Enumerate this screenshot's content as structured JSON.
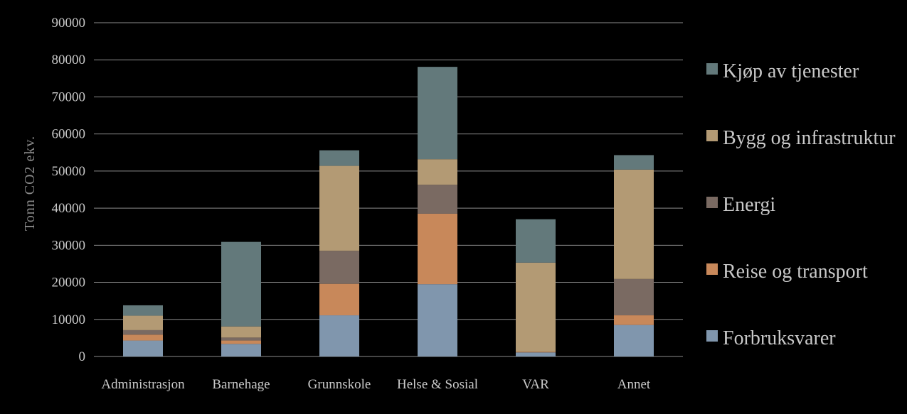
{
  "chart_data": {
    "type": "bar",
    "stacked": true,
    "title": "",
    "xlabel": "",
    "ylabel": "Tonn CO2 ekv.",
    "ylim": [
      0,
      90000
    ],
    "yticks": [
      "0",
      "10000",
      "20000",
      "30000",
      "40000",
      "50000",
      "60000",
      "70000",
      "80000",
      "90000"
    ],
    "grid": true,
    "legend_position": "right",
    "categories": [
      "Administrasjon",
      "Barnehage",
      "Grunnskole",
      "Helse & Sosial",
      "VAR",
      "Annet"
    ],
    "series": [
      {
        "name": "Forbruksvarer",
        "color": "#8096ad",
        "values": [
          4300,
          3400,
          11100,
          19500,
          1100,
          8500
        ]
      },
      {
        "name": "Reise og transport",
        "color": "#c8885a",
        "values": [
          1600,
          900,
          8500,
          19000,
          200,
          2600
        ]
      },
      {
        "name": "Energi",
        "color": "#7a6a62",
        "values": [
          1200,
          800,
          8900,
          7800,
          0,
          9800
        ]
      },
      {
        "name": "Bygg og infrastruktur",
        "color": "#b39a74",
        "values": [
          3900,
          3000,
          22900,
          6900,
          24000,
          29500
        ]
      },
      {
        "name": "Kjøp av tjenester",
        "color": "#63797b",
        "values": [
          2800,
          22800,
          4200,
          24900,
          11700,
          3900
        ]
      }
    ]
  }
}
